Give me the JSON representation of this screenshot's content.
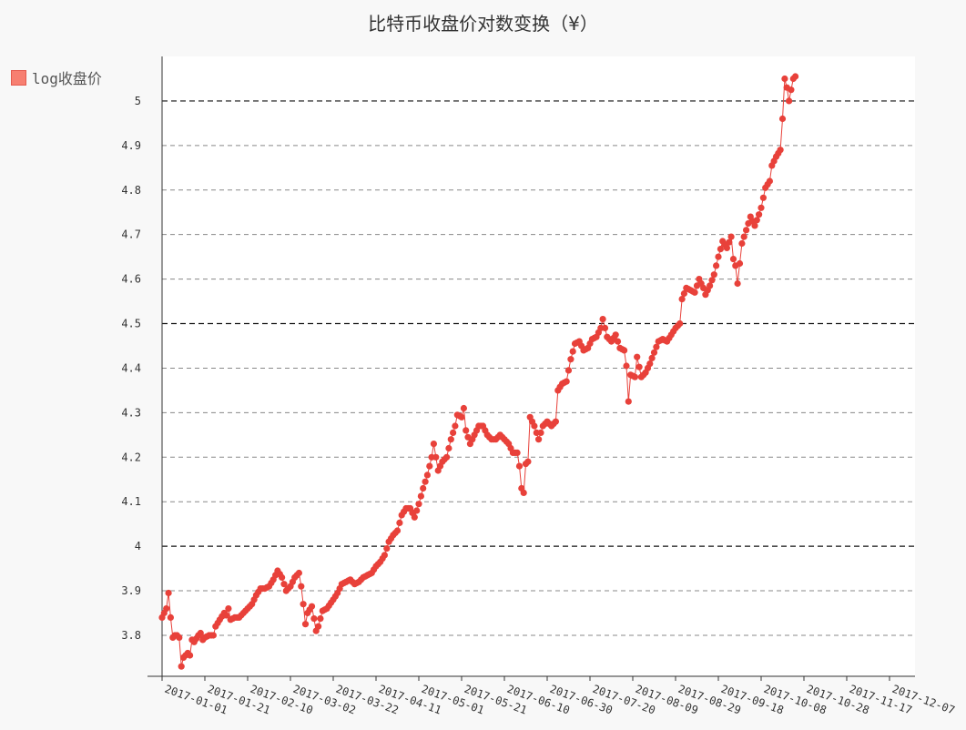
{
  "chart_data": {
    "type": "line",
    "title": "比特币收盘价对数变换（¥）",
    "series": [
      {
        "name": "log收盘价"
      }
    ],
    "x_tick_labels": [
      "2017-01-01",
      "2017-01-21",
      "2017-02-10",
      "2017-03-02",
      "2017-03-22",
      "2017-04-11",
      "2017-05-01",
      "2017-05-21",
      "2017-06-10",
      "2017-06-30",
      "2017-07-20",
      "2017-08-09",
      "2017-08-29",
      "2017-09-18",
      "2017-10-08",
      "2017-10-28",
      "2017-11-17",
      "2017-12-07"
    ],
    "x_start": "2017-01-01",
    "y_ticks": [
      "3.8",
      "3.9",
      "4",
      "4.1",
      "4.2",
      "4.3",
      "4.4",
      "4.5",
      "4.6",
      "4.7",
      "4.8",
      "4.9",
      "5"
    ],
    "ylim": [
      3.71,
      5.1
    ],
    "grid": true,
    "legend": "left",
    "color": "#e8413a",
    "anchors": [
      [
        0,
        3.84
      ],
      [
        2,
        3.86
      ],
      [
        3,
        3.895
      ],
      [
        4,
        3.84
      ],
      [
        5,
        3.795
      ],
      [
        6,
        3.8
      ],
      [
        7,
        3.8
      ],
      [
        8,
        3.795
      ],
      [
        9,
        3.73
      ],
      [
        10,
        3.75
      ],
      [
        12,
        3.76
      ],
      [
        13,
        3.755
      ],
      [
        14,
        3.79
      ],
      [
        15,
        3.785
      ],
      [
        17,
        3.8
      ],
      [
        18,
        3.805
      ],
      [
        19,
        3.79
      ],
      [
        20,
        3.795
      ],
      [
        22,
        3.8
      ],
      [
        24,
        3.8
      ],
      [
        25,
        3.82
      ],
      [
        27,
        3.835
      ],
      [
        29,
        3.85
      ],
      [
        30,
        3.845
      ],
      [
        31,
        3.86
      ],
      [
        32,
        3.835
      ],
      [
        34,
        3.84
      ],
      [
        36,
        3.84
      ],
      [
        38,
        3.85
      ],
      [
        40,
        3.86
      ],
      [
        42,
        3.87
      ],
      [
        44,
        3.89
      ],
      [
        46,
        3.905
      ],
      [
        48,
        3.905
      ],
      [
        50,
        3.91
      ],
      [
        52,
        3.925
      ],
      [
        54,
        3.945
      ],
      [
        56,
        3.93
      ],
      [
        58,
        3.9
      ],
      [
        60,
        3.91
      ],
      [
        62,
        3.93
      ],
      [
        64,
        3.94
      ],
      [
        65,
        3.91
      ],
      [
        66,
        3.87
      ],
      [
        67,
        3.825
      ],
      [
        68,
        3.85
      ],
      [
        70,
        3.865
      ],
      [
        72,
        3.81
      ],
      [
        73,
        3.82
      ],
      [
        75,
        3.855
      ],
      [
        77,
        3.86
      ],
      [
        80,
        3.88
      ],
      [
        82,
        3.895
      ],
      [
        84,
        3.915
      ],
      [
        86,
        3.92
      ],
      [
        88,
        3.925
      ],
      [
        90,
        3.915
      ],
      [
        92,
        3.92
      ],
      [
        94,
        3.93
      ],
      [
        96,
        3.935
      ],
      [
        98,
        3.94
      ],
      [
        100,
        3.955
      ],
      [
        102,
        3.965
      ],
      [
        104,
        3.98
      ],
      [
        106,
        4.01
      ],
      [
        108,
        4.025
      ],
      [
        110,
        4.035
      ],
      [
        112,
        4.07
      ],
      [
        114,
        4.085
      ],
      [
        116,
        4.085
      ],
      [
        118,
        4.065
      ],
      [
        120,
        4.095
      ],
      [
        122,
        4.13
      ],
      [
        124,
        4.16
      ],
      [
        126,
        4.2
      ],
      [
        127,
        4.23
      ],
      [
        129,
        4.17
      ],
      [
        131,
        4.19
      ],
      [
        133,
        4.2
      ],
      [
        135,
        4.24
      ],
      [
        137,
        4.27
      ],
      [
        138,
        4.295
      ],
      [
        140,
        4.29
      ],
      [
        141,
        4.31
      ],
      [
        142,
        4.26
      ],
      [
        144,
        4.23
      ],
      [
        146,
        4.25
      ],
      [
        148,
        4.27
      ],
      [
        150,
        4.27
      ],
      [
        152,
        4.25
      ],
      [
        154,
        4.24
      ],
      [
        156,
        4.24
      ],
      [
        158,
        4.25
      ],
      [
        160,
        4.24
      ],
      [
        162,
        4.23
      ],
      [
        164,
        4.21
      ],
      [
        166,
        4.21
      ],
      [
        167,
        4.18
      ],
      [
        168,
        4.13
      ],
      [
        169,
        4.12
      ],
      [
        170,
        4.185
      ],
      [
        171,
        4.19
      ],
      [
        172,
        4.29
      ],
      [
        174,
        4.27
      ],
      [
        176,
        4.24
      ],
      [
        178,
        4.27
      ],
      [
        180,
        4.28
      ],
      [
        182,
        4.27
      ],
      [
        184,
        4.28
      ],
      [
        185,
        4.35
      ],
      [
        187,
        4.365
      ],
      [
        189,
        4.37
      ],
      [
        191,
        4.42
      ],
      [
        193,
        4.455
      ],
      [
        195,
        4.46
      ],
      [
        197,
        4.44
      ],
      [
        199,
        4.445
      ],
      [
        201,
        4.465
      ],
      [
        203,
        4.47
      ],
      [
        205,
        4.49
      ],
      [
        206,
        4.51
      ],
      [
        208,
        4.47
      ],
      [
        210,
        4.46
      ],
      [
        212,
        4.475
      ],
      [
        214,
        4.445
      ],
      [
        216,
        4.44
      ],
      [
        217,
        4.405
      ],
      [
        218,
        4.325
      ],
      [
        219,
        4.385
      ],
      [
        221,
        4.38
      ],
      [
        222,
        4.425
      ],
      [
        224,
        4.38
      ],
      [
        226,
        4.39
      ],
      [
        228,
        4.41
      ],
      [
        230,
        4.435
      ],
      [
        232,
        4.46
      ],
      [
        234,
        4.465
      ],
      [
        236,
        4.46
      ],
      [
        238,
        4.475
      ],
      [
        240,
        4.49
      ],
      [
        242,
        4.5
      ],
      [
        243,
        4.555
      ],
      [
        245,
        4.58
      ],
      [
        247,
        4.575
      ],
      [
        249,
        4.57
      ],
      [
        251,
        4.6
      ],
      [
        253,
        4.58
      ],
      [
        254,
        4.565
      ],
      [
        256,
        4.585
      ],
      [
        258,
        4.61
      ],
      [
        260,
        4.65
      ],
      [
        262,
        4.685
      ],
      [
        264,
        4.67
      ],
      [
        266,
        4.695
      ],
      [
        267,
        4.645
      ],
      [
        268,
        4.63
      ],
      [
        269,
        4.59
      ],
      [
        271,
        4.68
      ],
      [
        273,
        4.71
      ],
      [
        275,
        4.74
      ],
      [
        277,
        4.72
      ],
      [
        279,
        4.745
      ],
      [
        280,
        4.76
      ],
      [
        282,
        4.805
      ],
      [
        284,
        4.82
      ],
      [
        285,
        4.855
      ],
      [
        287,
        4.875
      ],
      [
        289,
        4.89
      ],
      [
        290,
        4.96
      ],
      [
        291,
        5.05
      ],
      [
        292,
        5.03
      ],
      [
        293,
        5.0
      ],
      [
        295,
        5.05
      ],
      [
        296,
        5.055
      ]
    ]
  }
}
